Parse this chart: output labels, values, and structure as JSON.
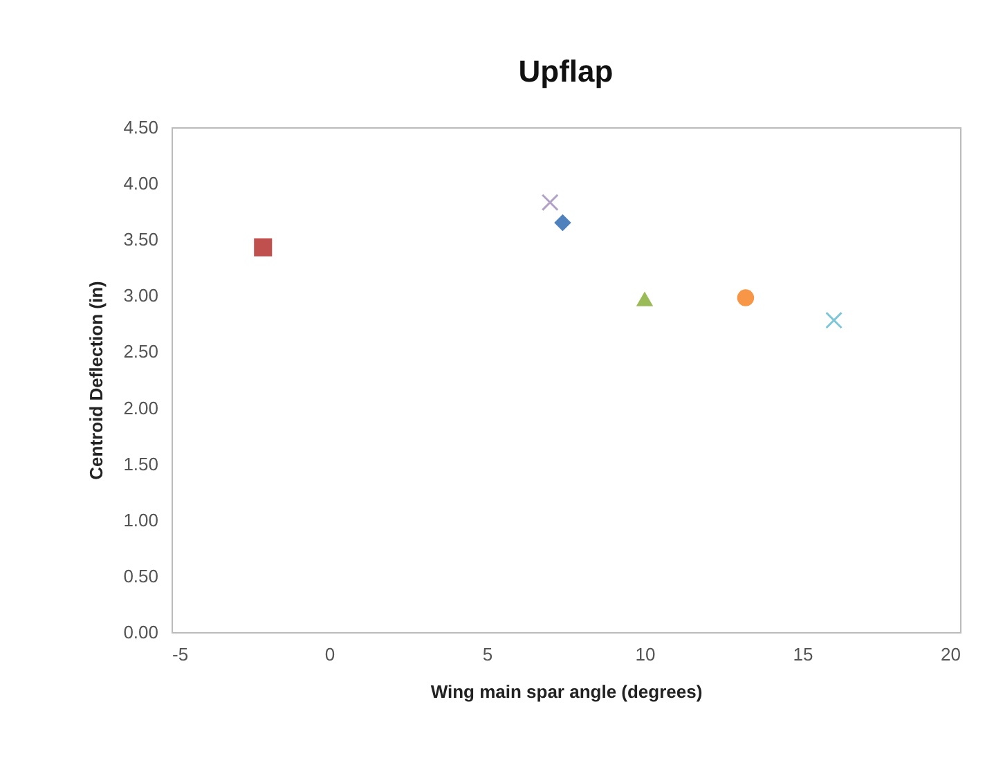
{
  "chart_data": {
    "type": "scatter",
    "title": "Upflap",
    "xlabel": "Wing main spar angle (degrees)",
    "ylabel": "Centroid Deflection (in)",
    "xlim": [
      -5,
      20
    ],
    "xticks": [
      -5,
      0,
      5,
      10,
      15,
      20
    ],
    "ylim": [
      0,
      4.5
    ],
    "yticks": [
      {
        "value": 0,
        "label": "0.00"
      },
      {
        "value": 0.5,
        "label": "0.50"
      },
      {
        "value": 1,
        "label": "1.00"
      },
      {
        "value": 1.5,
        "label": "1.50"
      },
      {
        "value": 2,
        "label": "2.00"
      },
      {
        "value": 2.5,
        "label": "2.50"
      },
      {
        "value": 3,
        "label": "3.00"
      },
      {
        "value": 3.5,
        "label": "3.50"
      },
      {
        "value": 4,
        "label": "4.00"
      },
      {
        "value": 4.5,
        "label": "4.50"
      }
    ],
    "grid": false,
    "series": [
      {
        "color": "#4f81bd",
        "marker": "diamond",
        "x": [
          7.4
        ],
        "values": [
          3.65
        ]
      },
      {
        "color": "#c0504d",
        "marker": "square",
        "x": [
          -2.1
        ],
        "values": [
          3.43
        ]
      },
      {
        "color": "#9bbb59",
        "marker": "triangle",
        "x": [
          10
        ],
        "values": [
          2.97
        ]
      },
      {
        "color": "#b3a2c7",
        "marker": "cross",
        "x": [
          7
        ],
        "values": [
          3.83
        ]
      },
      {
        "color": "#7fc6d9",
        "marker": "cross",
        "x": [
          16
        ],
        "values": [
          2.78
        ]
      },
      {
        "color": "#f79646",
        "marker": "circle",
        "x": [
          13.2
        ],
        "values": [
          2.98
        ]
      }
    ]
  }
}
